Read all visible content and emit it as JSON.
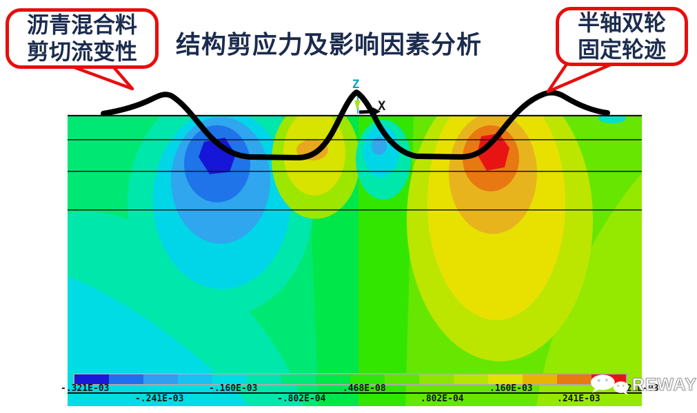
{
  "title": "结构剪应力及影响因素分析",
  "callout_left": {
    "line1": "沥青混合料",
    "line2": "剪切流变性"
  },
  "callout_right": {
    "line1": "半轴双轮",
    "line2": "固定轮迹"
  },
  "triad": {
    "z": "Z",
    "x": "X"
  },
  "legend": {
    "row1": [
      "-.321E-03",
      "-.160E-03",
      ".468E-08",
      ".160E-03",
      ".321E-03"
    ],
    "row2": [
      "-.241E-03",
      "-.802E-04",
      ".802E-04",
      ".241E-03"
    ],
    "colors": [
      "#1818d8",
      "#2070ee",
      "#2f9ff2",
      "#15c3f3",
      "#00dce4",
      "#00e4b0",
      "#00e878",
      "#00e748",
      "#2ee607",
      "#5ce600",
      "#8ce600",
      "#b4e600",
      "#e0e400",
      "#e8b400",
      "#e87810",
      "#e81414"
    ]
  },
  "watermark": {
    "brand": "REWAY"
  },
  "chart_data": {
    "type": "heatmap",
    "title": "结构剪应力及影响因素分析",
    "subtype": "FEA shear-stress contour of layered pavement cross-section",
    "legend_values": [
      "-.321E-03",
      "-.241E-03",
      "-.160E-03",
      "-.802E-04",
      ".468E-08",
      ".802E-04",
      ".160E-03",
      ".241E-03",
      ".321E-03"
    ],
    "value_range": [
      -0.000321,
      0.000321
    ],
    "colormap": [
      "#1818d8",
      "#2070ee",
      "#2f9ff2",
      "#15c3f3",
      "#00dce4",
      "#00e4b0",
      "#00e878",
      "#00e748",
      "#2ee607",
      "#5ce600",
      "#8ce600",
      "#b4e600",
      "#e0e400",
      "#e8b400",
      "#e87810",
      "#e81414"
    ],
    "axes": {
      "horizontal": "X",
      "vertical": "Z"
    },
    "annotations": [
      "沥青混合料剪切流变性",
      "半轴双轮固定轮迹"
    ],
    "features": [
      {
        "label": "negative shear concentration (dark blue core) under left wheel",
        "value": "-.321E-03"
      },
      {
        "label": "positive shear concentration (red core) under right wheel",
        "value": ".321E-03"
      },
      {
        "label": "surface rut/deformation curve with two wheel depressions and heave between",
        "value": ""
      },
      {
        "label": "four horizontal pavement layer interface lines",
        "value": ""
      }
    ],
    "legend_position": "bottom"
  }
}
